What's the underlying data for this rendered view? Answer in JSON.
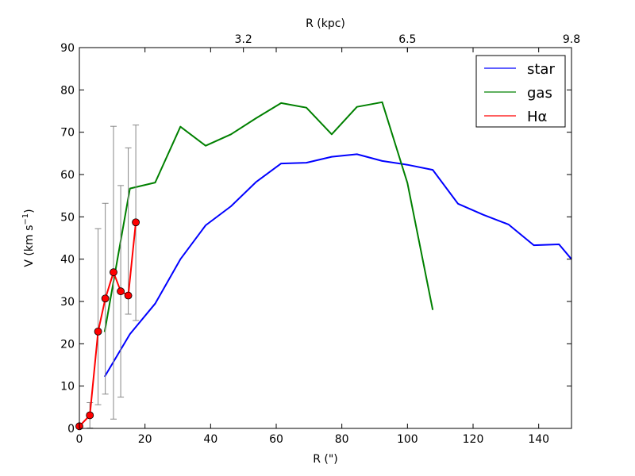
{
  "chart_data": {
    "type": "line",
    "title": "",
    "xlabel": "R (\")",
    "ylabel": "V (km s",
    "ylabel_sup": "−1",
    "ylabel_end": ")",
    "top_xlabel": "R (kpc)",
    "xlim": [
      0,
      150
    ],
    "ylim": [
      0,
      90
    ],
    "x_ticks": [
      0,
      20,
      40,
      60,
      80,
      100,
      120,
      140
    ],
    "y_ticks": [
      0,
      10,
      20,
      30,
      40,
      50,
      60,
      70,
      80,
      90
    ],
    "top_ticks": [
      {
        "label": "3.2",
        "x": 50
      },
      {
        "label": "6.5",
        "x": 100
      },
      {
        "label": "9.8",
        "x": 150
      }
    ],
    "grid": false,
    "legend": "top-right",
    "series": [
      {
        "name": "star",
        "color": "#0000ff",
        "markers": false,
        "x": [
          7.7,
          15.4,
          23.1,
          30.8,
          38.5,
          46.2,
          53.8,
          61.5,
          69.2,
          76.9,
          84.6,
          92.3,
          100,
          107.7,
          115.4,
          123.1,
          130.8,
          138.5,
          146.2,
          150
        ],
        "y": [
          12.2,
          22.3,
          29.5,
          40.0,
          48.0,
          52.5,
          58.2,
          62.6,
          62.8,
          64.2,
          64.8,
          63.2,
          62.3,
          61.1,
          53.1,
          50.5,
          48.2,
          43.3,
          43.5,
          40.0
        ]
      },
      {
        "name": "gas",
        "color": "#008000",
        "markers": false,
        "x": [
          7.7,
          15.4,
          23.1,
          30.8,
          38.5,
          46.2,
          53.8,
          61.5,
          69.2,
          76.9,
          84.6,
          92.3,
          100,
          107.7
        ],
        "y": [
          22.8,
          56.7,
          58.1,
          71.3,
          66.8,
          69.5,
          73.3,
          76.9,
          75.8,
          69.5,
          76.0,
          77.1,
          58.0,
          28.0
        ]
      },
      {
        "name": "Hα",
        "color": "#ff0000",
        "markers": true,
        "marker_fill": "#ff0000",
        "errorbar_color": "#888888",
        "x": [
          0,
          3.2,
          5.7,
          7.9,
          10.4,
          12.6,
          14.9,
          17.2
        ],
        "y": [
          0.5,
          3.1,
          22.9,
          30.7,
          36.9,
          32.4,
          31.4,
          48.7
        ],
        "yerr_low": [
          0.4,
          3.0,
          17.3,
          22.6,
          34.7,
          25.0,
          4.4,
          23.2
        ],
        "yerr_high": [
          0.4,
          3.0,
          24.3,
          22.5,
          34.5,
          25.0,
          34.9,
          23.0
        ]
      }
    ]
  }
}
